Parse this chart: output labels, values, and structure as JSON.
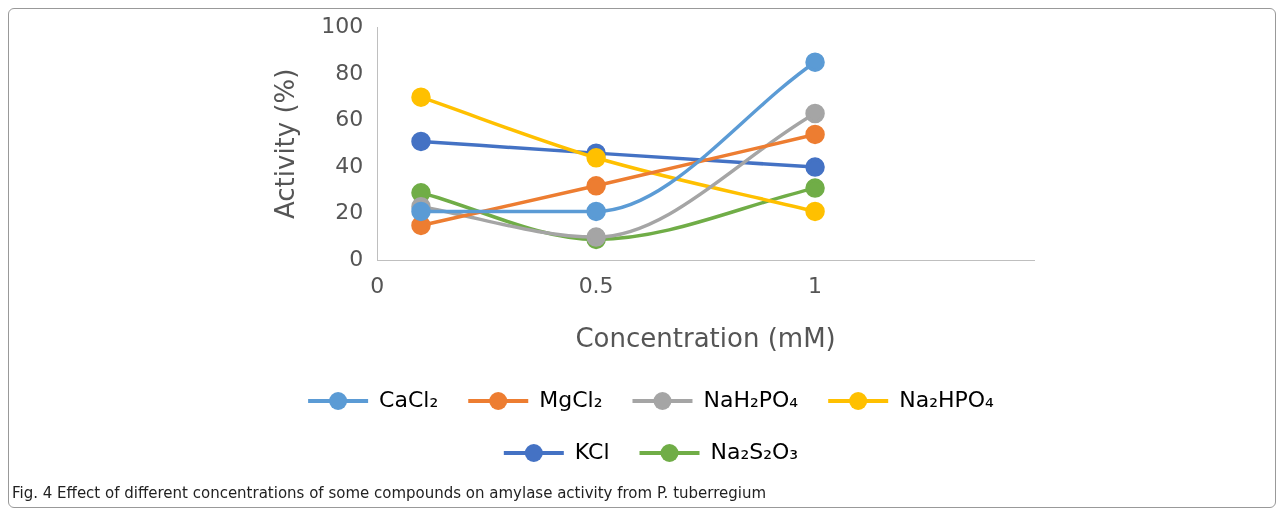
{
  "chart_data": {
    "type": "line",
    "xlabel": "Concentration (mM)",
    "ylabel": "Activity (%)",
    "xlim": [
      0,
      1.5
    ],
    "xticks": [
      0,
      0.5,
      1
    ],
    "ylim": [
      0,
      100
    ],
    "yticks": [
      0,
      20,
      40,
      60,
      80,
      100
    ],
    "grid": false,
    "legend": "bottom",
    "marker": "circle",
    "line_style": "solid",
    "x": [
      0.1,
      0.5,
      1
    ],
    "series": [
      {
        "name": "CaCl₂",
        "color": "#5b9bd5",
        "values": [
          21,
          21,
          85
        ]
      },
      {
        "name": "MgCl₂",
        "color": "#ed7d31",
        "values": [
          15,
          32,
          54
        ]
      },
      {
        "name": "NaH₂PO₄",
        "color": "#a5a5a5",
        "values": [
          23,
          10,
          63
        ]
      },
      {
        "name": "Na₂HPO₄",
        "color": "#ffc000",
        "values": [
          70,
          44,
          21
        ]
      },
      {
        "name": "KCl",
        "color": "#4472c4",
        "values": [
          51,
          46,
          40
        ]
      },
      {
        "name": "Na₂S₂O₃",
        "color": "#70ad47",
        "values": [
          29,
          9,
          31
        ]
      }
    ],
    "annotations": [
      "Fig. 4  Effect of different concentrations of some compounds on amylase activity from P. tuberregium"
    ]
  }
}
